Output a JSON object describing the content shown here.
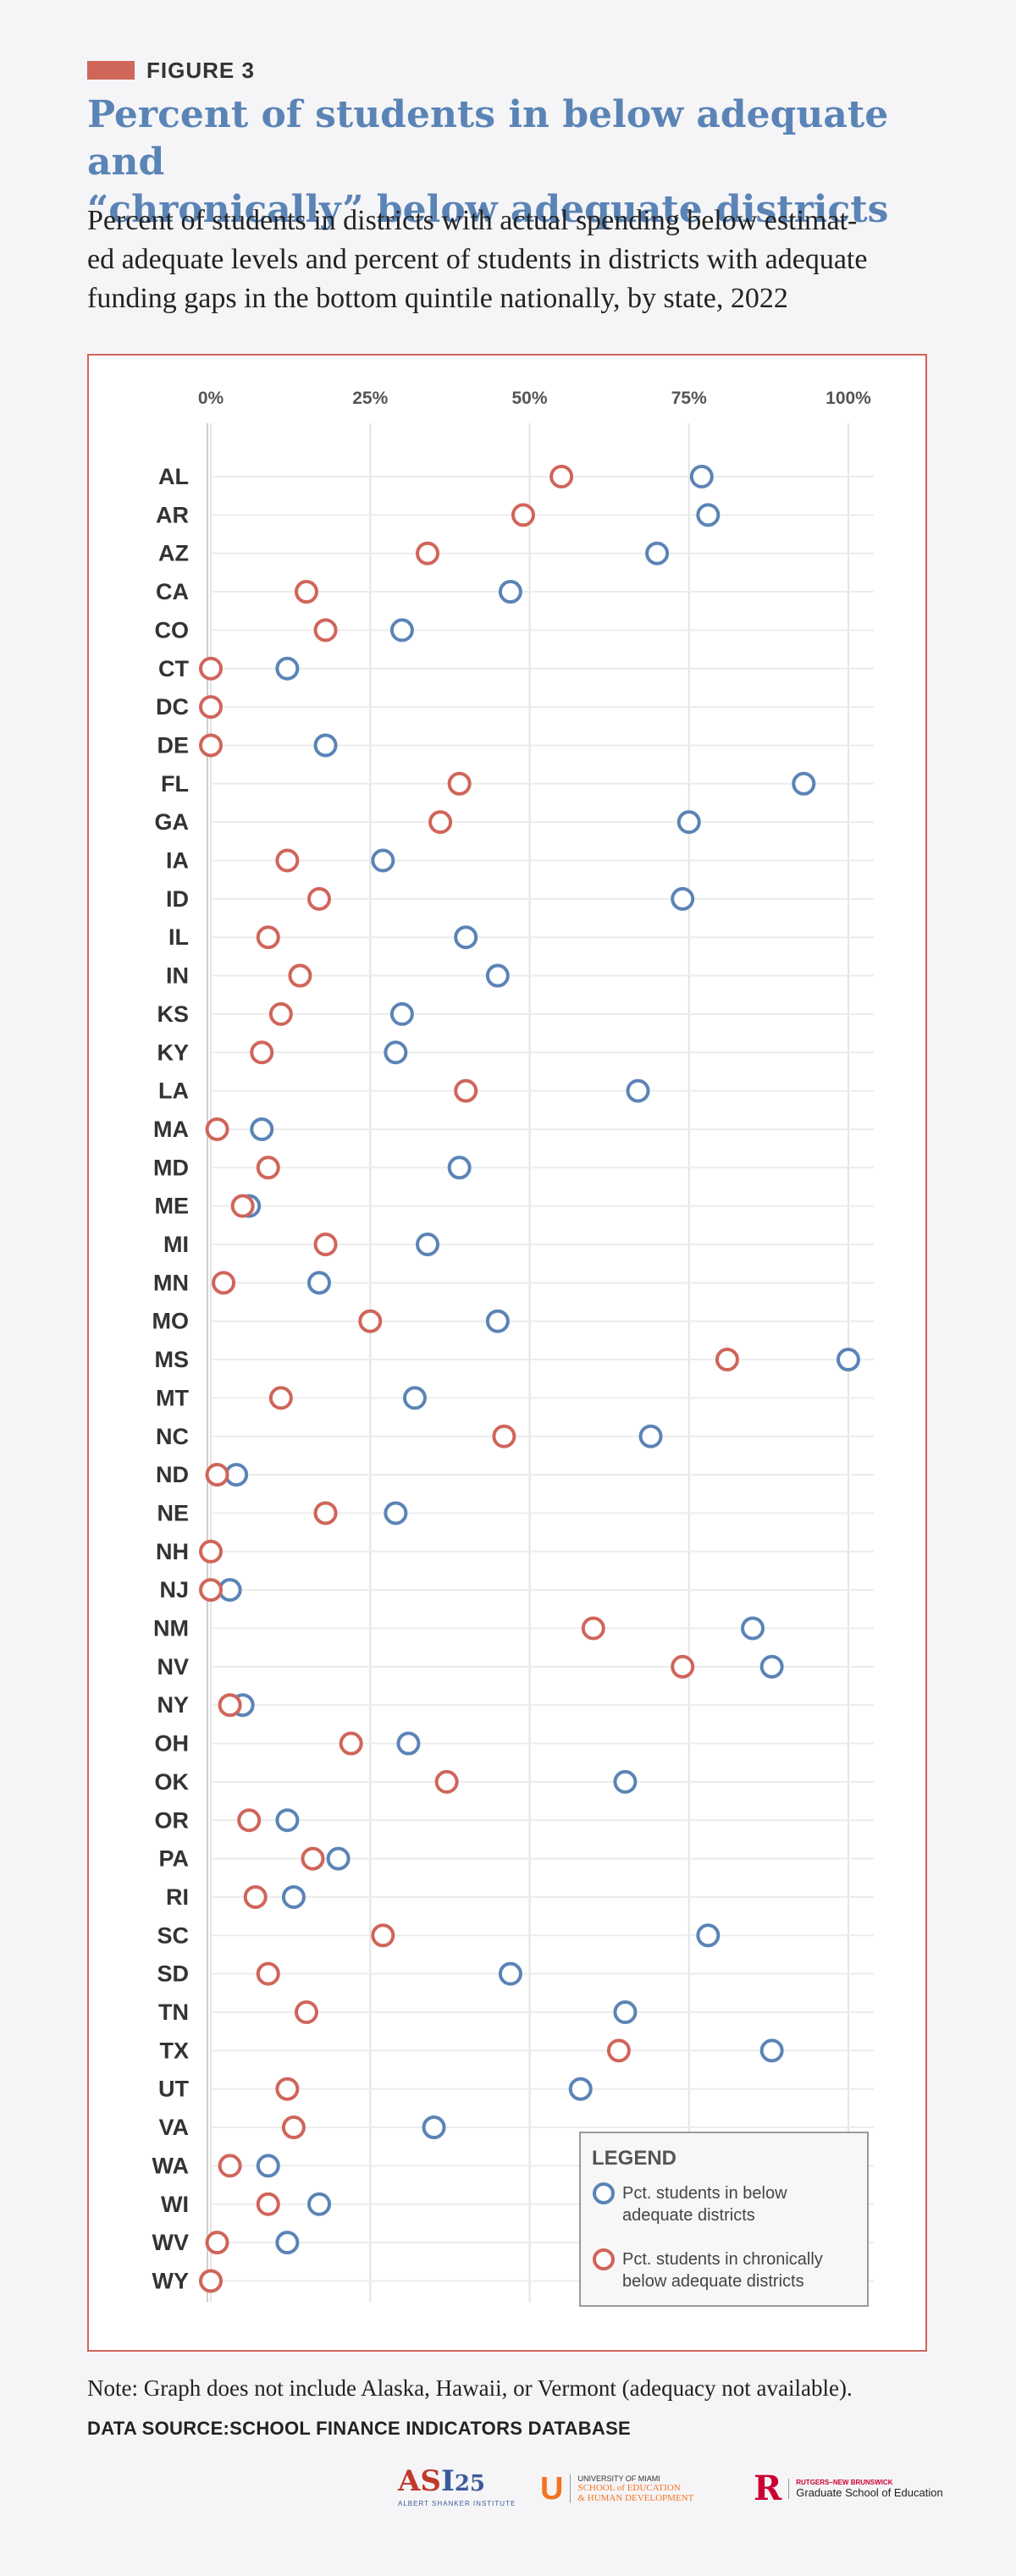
{
  "header": {
    "figure_label": "FIGURE 3",
    "title_line1": "Percent of students in below adequate and",
    "title_line2": "“chronically” below adequate districts",
    "subtitle_line1": "Percent of students in districts with actual spending below estimat-",
    "subtitle_line2": "ed adequate levels and percent of students in districts with adequate",
    "subtitle_line3": "funding gaps in the bottom quintile nationally, by state, 2022"
  },
  "footer": {
    "note": "Note: Graph does not include Alaska, Hawaii, or Vermont (adequacy not available).",
    "source": "DATA SOURCE:SCHOOL FINANCE INDICATORS DATABASE"
  },
  "logos": {
    "asi_mark_a": "AS",
    "asi_mark_b": "I",
    "asi_mark_c": "25",
    "asi_text": "ALBERT SHANKER INSTITUTE",
    "um_mark_a": "U",
    "um_line1": "UNIVERSITY OF MIAMI",
    "um_line2": "SCHOOL of EDUCATION",
    "um_line3": "& HUMAN DEVELOPMENT",
    "ru_mark": "R",
    "ru_line1": "RUTGERS–NEW BRUNSWICK",
    "ru_line2": "Graduate School of Education"
  },
  "colors": {
    "blue": "#5b84b6",
    "red": "#d0655a",
    "frame": "#d0655a",
    "grid": "#e6e6e6"
  },
  "chart_data": {
    "type": "scatter",
    "orientation": "horizontal-dot-plot",
    "xlim": [
      0,
      100
    ],
    "x_ticks": [
      "0%",
      "25%",
      "50%",
      "75%",
      "100%"
    ],
    "x_tick_values": [
      0,
      25,
      50,
      75,
      100
    ],
    "grid": true,
    "legend_position": "bottom-right",
    "legend_title": "LEGEND",
    "categories": [
      "AL",
      "AR",
      "AZ",
      "CA",
      "CO",
      "CT",
      "DC",
      "DE",
      "FL",
      "GA",
      "IA",
      "ID",
      "IL",
      "IN",
      "KS",
      "KY",
      "LA",
      "MA",
      "MD",
      "ME",
      "MI",
      "MN",
      "MO",
      "MS",
      "MT",
      "NC",
      "ND",
      "NE",
      "NH",
      "NJ",
      "NM",
      "NV",
      "NY",
      "OH",
      "OK",
      "OR",
      "PA",
      "RI",
      "SC",
      "SD",
      "TN",
      "TX",
      "UT",
      "VA",
      "WA",
      "WI",
      "WV",
      "WY"
    ],
    "series": [
      {
        "name": "Pct. students in below adequate districts",
        "legend_line1": "Pct. students in below",
        "legend_line2": "adequate districts",
        "color": "#5b84b6",
        "values": [
          77,
          78,
          70,
          47,
          30,
          12,
          null,
          18,
          93,
          75,
          27,
          74,
          40,
          45,
          30,
          29,
          67,
          8,
          39,
          6,
          34,
          17,
          45,
          100,
          32,
          69,
          4,
          29,
          null,
          3,
          85,
          88,
          5,
          31,
          65,
          12,
          20,
          13,
          78,
          47,
          65,
          88,
          58,
          35,
          9,
          17,
          12,
          null
        ]
      },
      {
        "name": "Pct. students in chronically below adequate districts",
        "legend_line1": "Pct. students in chronically",
        "legend_line2": "below adequate districts",
        "color": "#d0655a",
        "values": [
          55,
          49,
          34,
          15,
          18,
          0,
          0,
          0,
          39,
          36,
          12,
          17,
          9,
          14,
          11,
          8,
          40,
          1,
          9,
          5,
          18,
          2,
          25,
          81,
          11,
          46,
          1,
          18,
          0,
          0,
          60,
          74,
          3,
          22,
          37,
          6,
          16,
          7,
          27,
          9,
          15,
          64,
          12,
          13,
          3,
          9,
          1,
          0
        ]
      }
    ]
  }
}
